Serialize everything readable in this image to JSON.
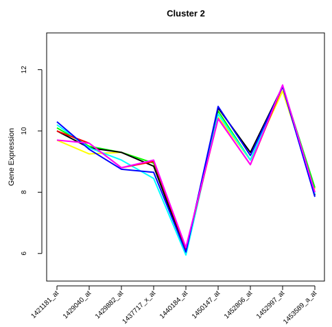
{
  "chart_data": {
    "type": "line",
    "title": "Cluster 2",
    "xlabel": "",
    "ylabel": "Gene Expression",
    "categories": [
      "1421181_at",
      "1429040_at",
      "1429882_at",
      "1437717_x_at",
      "1440184_at",
      "1450147_at",
      "1452806_at",
      "1452997_at",
      "1453589_a_at"
    ],
    "ylim": [
      5.1,
      13.2
    ],
    "yticks": [
      6,
      8,
      10,
      12
    ],
    "grid": false,
    "legend": "none",
    "series": [
      {
        "color": "#ffff00",
        "values": [
          9.7,
          9.25,
          9.3,
          8.95,
          6.05,
          10.45,
          9.05,
          11.3,
          8.1
        ]
      },
      {
        "color": "#00ff00",
        "values": [
          10.1,
          9.5,
          9.3,
          8.95,
          6.1,
          10.65,
          9.05,
          11.45,
          8.15
        ]
      },
      {
        "color": "#000000",
        "values": [
          10.0,
          9.45,
          9.3,
          8.85,
          6.05,
          10.75,
          9.3,
          11.45,
          7.9
        ]
      },
      {
        "color": "#00ffff",
        "values": [
          10.2,
          9.45,
          9.05,
          8.45,
          5.95,
          10.55,
          9.05,
          11.45,
          7.95
        ]
      },
      {
        "color": "#ff0000",
        "values": [
          10.0,
          9.6,
          8.8,
          9.0,
          6.15,
          10.4,
          8.9,
          11.45,
          8.0
        ]
      },
      {
        "color": "#0000ff",
        "values": [
          10.3,
          9.4,
          8.75,
          8.65,
          6.05,
          10.8,
          9.2,
          11.45,
          7.85
        ]
      },
      {
        "color": "#ff00ff",
        "values": [
          9.7,
          9.6,
          8.8,
          9.05,
          6.2,
          10.4,
          8.9,
          11.5,
          8.0
        ]
      }
    ]
  }
}
